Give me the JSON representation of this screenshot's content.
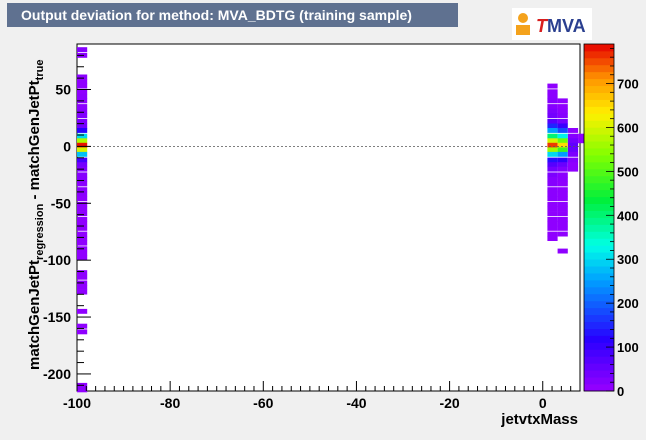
{
  "header": {
    "title": "Output deviation for method: MVA_BDTG (training sample)",
    "logo_text": "TMVA"
  },
  "colors": {
    "title_bg": "#5f7190",
    "frame_bg": "#f0f0f0",
    "plot_bg": "#ffffff",
    "logo_accent": "#d81e1e",
    "logo_text": "#2a3f8f"
  },
  "chart_data": {
    "type": "heatmap",
    "xlabel": "jetvtxMass",
    "ylabel_parts": [
      "matchGenJetPt",
      "regression",
      " - matchGenJetPt",
      "true"
    ],
    "xlim": [
      -100,
      8
    ],
    "ylim": [
      -215,
      90
    ],
    "zlim": [
      0,
      790
    ],
    "x_ticks": [
      -100,
      -80,
      -60,
      -40,
      -20,
      0
    ],
    "y_ticks": [
      50,
      0,
      -50,
      -100,
      -150,
      -200
    ],
    "z_ticks": [
      0,
      100,
      200,
      300,
      400,
      500,
      600,
      700
    ],
    "reference_line_y": 0,
    "palette": "rainbow (violet to red)",
    "cell_width": 2.2,
    "cell_height": 4.3,
    "cells": [
      {
        "x": -100,
        "y": 85,
        "z": 20
      },
      {
        "x": -100,
        "y": 80,
        "z": 15
      },
      {
        "x": -100,
        "y": 61,
        "z": 15
      },
      {
        "x": -100,
        "y": 57,
        "z": 10
      },
      {
        "x": -100,
        "y": 53,
        "z": 10
      },
      {
        "x": -100,
        "y": 48,
        "z": 10
      },
      {
        "x": -100,
        "y": 44,
        "z": 15
      },
      {
        "x": -100,
        "y": 40,
        "z": 15
      },
      {
        "x": -100,
        "y": 35,
        "z": 15
      },
      {
        "x": -100,
        "y": 31,
        "z": 20
      },
      {
        "x": -100,
        "y": 27,
        "z": 25
      },
      {
        "x": -100,
        "y": 22,
        "z": 30
      },
      {
        "x": -100,
        "y": 18,
        "z": 40
      },
      {
        "x": -100,
        "y": 14,
        "z": 120
      },
      {
        "x": -100,
        "y": 9,
        "z": 300
      },
      {
        "x": -100,
        "y": 5,
        "z": 570
      },
      {
        "x": -100,
        "y": 1,
        "z": 780
      },
      {
        "x": -100,
        "y": -3,
        "z": 600
      },
      {
        "x": -100,
        "y": -7,
        "z": 280
      },
      {
        "x": -100,
        "y": -12,
        "z": 90
      },
      {
        "x": -100,
        "y": -16,
        "z": 40
      },
      {
        "x": -100,
        "y": -20,
        "z": 25
      },
      {
        "x": -100,
        "y": -25,
        "z": 20
      },
      {
        "x": -100,
        "y": -29,
        "z": 20
      },
      {
        "x": -100,
        "y": -33,
        "z": 15
      },
      {
        "x": -100,
        "y": -38,
        "z": 15
      },
      {
        "x": -100,
        "y": -42,
        "z": 15
      },
      {
        "x": -100,
        "y": -46,
        "z": 10
      },
      {
        "x": -100,
        "y": -51,
        "z": 10
      },
      {
        "x": -100,
        "y": -55,
        "z": 10
      },
      {
        "x": -100,
        "y": -59,
        "z": 10
      },
      {
        "x": -100,
        "y": -64,
        "z": 10
      },
      {
        "x": -100,
        "y": -68,
        "z": 10
      },
      {
        "x": -100,
        "y": -72,
        "z": 10
      },
      {
        "x": -100,
        "y": -77,
        "z": 10
      },
      {
        "x": -100,
        "y": -81,
        "z": 10
      },
      {
        "x": -100,
        "y": -85,
        "z": 10
      },
      {
        "x": -100,
        "y": -90,
        "z": 10
      },
      {
        "x": -100,
        "y": -94,
        "z": 10
      },
      {
        "x": -100,
        "y": -98,
        "z": 10
      },
      {
        "x": -100,
        "y": -111,
        "z": 10
      },
      {
        "x": -100,
        "y": -115,
        "z": 10
      },
      {
        "x": -100,
        "y": -120,
        "z": 10
      },
      {
        "x": -100,
        "y": -124,
        "z": 10
      },
      {
        "x": -100,
        "y": -128,
        "z": 10
      },
      {
        "x": -100,
        "y": -145,
        "z": 10
      },
      {
        "x": -100,
        "y": -158,
        "z": 10
      },
      {
        "x": -100,
        "y": -163,
        "z": 10
      },
      {
        "x": -100,
        "y": -210,
        "z": 10
      },
      {
        "x": -100,
        "y": -214,
        "z": 10
      },
      {
        "x": 1,
        "y": 53,
        "z": 10
      },
      {
        "x": 1,
        "y": 48,
        "z": 15
      },
      {
        "x": 1,
        "y": 44,
        "z": 15
      },
      {
        "x": 1,
        "y": 40,
        "z": 20
      },
      {
        "x": 1,
        "y": 35,
        "z": 20
      },
      {
        "x": 1,
        "y": 31,
        "z": 30
      },
      {
        "x": 1,
        "y": 27,
        "z": 40
      },
      {
        "x": 1,
        "y": 22,
        "z": 70
      },
      {
        "x": 1,
        "y": 18,
        "z": 150
      },
      {
        "x": 1,
        "y": 14,
        "z": 250
      },
      {
        "x": 1,
        "y": 9,
        "z": 400
      },
      {
        "x": 1,
        "y": 5,
        "z": 600
      },
      {
        "x": 1,
        "y": 1,
        "z": 760
      },
      {
        "x": 1,
        "y": -3,
        "z": 560
      },
      {
        "x": 1,
        "y": -7,
        "z": 300
      },
      {
        "x": 1,
        "y": -12,
        "z": 130
      },
      {
        "x": 1,
        "y": -16,
        "z": 70
      },
      {
        "x": 1,
        "y": -20,
        "z": 40
      },
      {
        "x": 1,
        "y": -25,
        "z": 30
      },
      {
        "x": 1,
        "y": -29,
        "z": 20
      },
      {
        "x": 1,
        "y": -33,
        "z": 20
      },
      {
        "x": 1,
        "y": -38,
        "z": 15
      },
      {
        "x": 1,
        "y": -42,
        "z": 15
      },
      {
        "x": 1,
        "y": -46,
        "z": 15
      },
      {
        "x": 1,
        "y": -51,
        "z": 10
      },
      {
        "x": 1,
        "y": -55,
        "z": 10
      },
      {
        "x": 1,
        "y": -59,
        "z": 10
      },
      {
        "x": 1,
        "y": -64,
        "z": 10
      },
      {
        "x": 1,
        "y": -68,
        "z": 10
      },
      {
        "x": 1,
        "y": -72,
        "z": 10
      },
      {
        "x": 1,
        "y": -77,
        "z": 10
      },
      {
        "x": 1,
        "y": -81,
        "z": 10
      },
      {
        "x": 3.2,
        "y": 40,
        "z": 10
      },
      {
        "x": 3.2,
        "y": 35,
        "z": 10
      },
      {
        "x": 3.2,
        "y": 31,
        "z": 15
      },
      {
        "x": 3.2,
        "y": 27,
        "z": 20
      },
      {
        "x": 3.2,
        "y": 22,
        "z": 40
      },
      {
        "x": 3.2,
        "y": 18,
        "z": 100
      },
      {
        "x": 3.2,
        "y": 14,
        "z": 180
      },
      {
        "x": 3.2,
        "y": 9,
        "z": 320
      },
      {
        "x": 3.2,
        "y": 5,
        "z": 520
      },
      {
        "x": 3.2,
        "y": 1,
        "z": 650
      },
      {
        "x": 3.2,
        "y": -3,
        "z": 480
      },
      {
        "x": 3.2,
        "y": -7,
        "z": 250
      },
      {
        "x": 3.2,
        "y": -12,
        "z": 110
      },
      {
        "x": 3.2,
        "y": -16,
        "z": 50
      },
      {
        "x": 3.2,
        "y": -20,
        "z": 25
      },
      {
        "x": 3.2,
        "y": -25,
        "z": 15
      },
      {
        "x": 3.2,
        "y": -29,
        "z": 15
      },
      {
        "x": 3.2,
        "y": -33,
        "z": 10
      },
      {
        "x": 3.2,
        "y": -38,
        "z": 10
      },
      {
        "x": 3.2,
        "y": -42,
        "z": 10
      },
      {
        "x": 3.2,
        "y": -46,
        "z": 10
      },
      {
        "x": 3.2,
        "y": -51,
        "z": 10
      },
      {
        "x": 3.2,
        "y": -55,
        "z": 10
      },
      {
        "x": 3.2,
        "y": -59,
        "z": 10
      },
      {
        "x": 3.2,
        "y": -64,
        "z": 10
      },
      {
        "x": 3.2,
        "y": -68,
        "z": 10
      },
      {
        "x": 3.2,
        "y": -72,
        "z": 10
      },
      {
        "x": 3.2,
        "y": -77,
        "z": 10
      },
      {
        "x": 3.2,
        "y": -92,
        "z": 10
      },
      {
        "x": 5.4,
        "y": 14,
        "z": 10
      },
      {
        "x": 5.4,
        "y": 9,
        "z": 20
      },
      {
        "x": 5.4,
        "y": 5,
        "z": 40
      },
      {
        "x": 5.4,
        "y": 1,
        "z": 60
      },
      {
        "x": 5.4,
        "y": -3,
        "z": 50
      },
      {
        "x": 5.4,
        "y": -7,
        "z": 30
      },
      {
        "x": 5.4,
        "y": -12,
        "z": 20
      },
      {
        "x": 5.4,
        "y": -16,
        "z": 10
      },
      {
        "x": 5.4,
        "y": -20,
        "z": 10
      },
      {
        "x": 7.6,
        "y": 9,
        "z": 10
      },
      {
        "x": 7.6,
        "y": 5,
        "z": 15
      }
    ]
  }
}
